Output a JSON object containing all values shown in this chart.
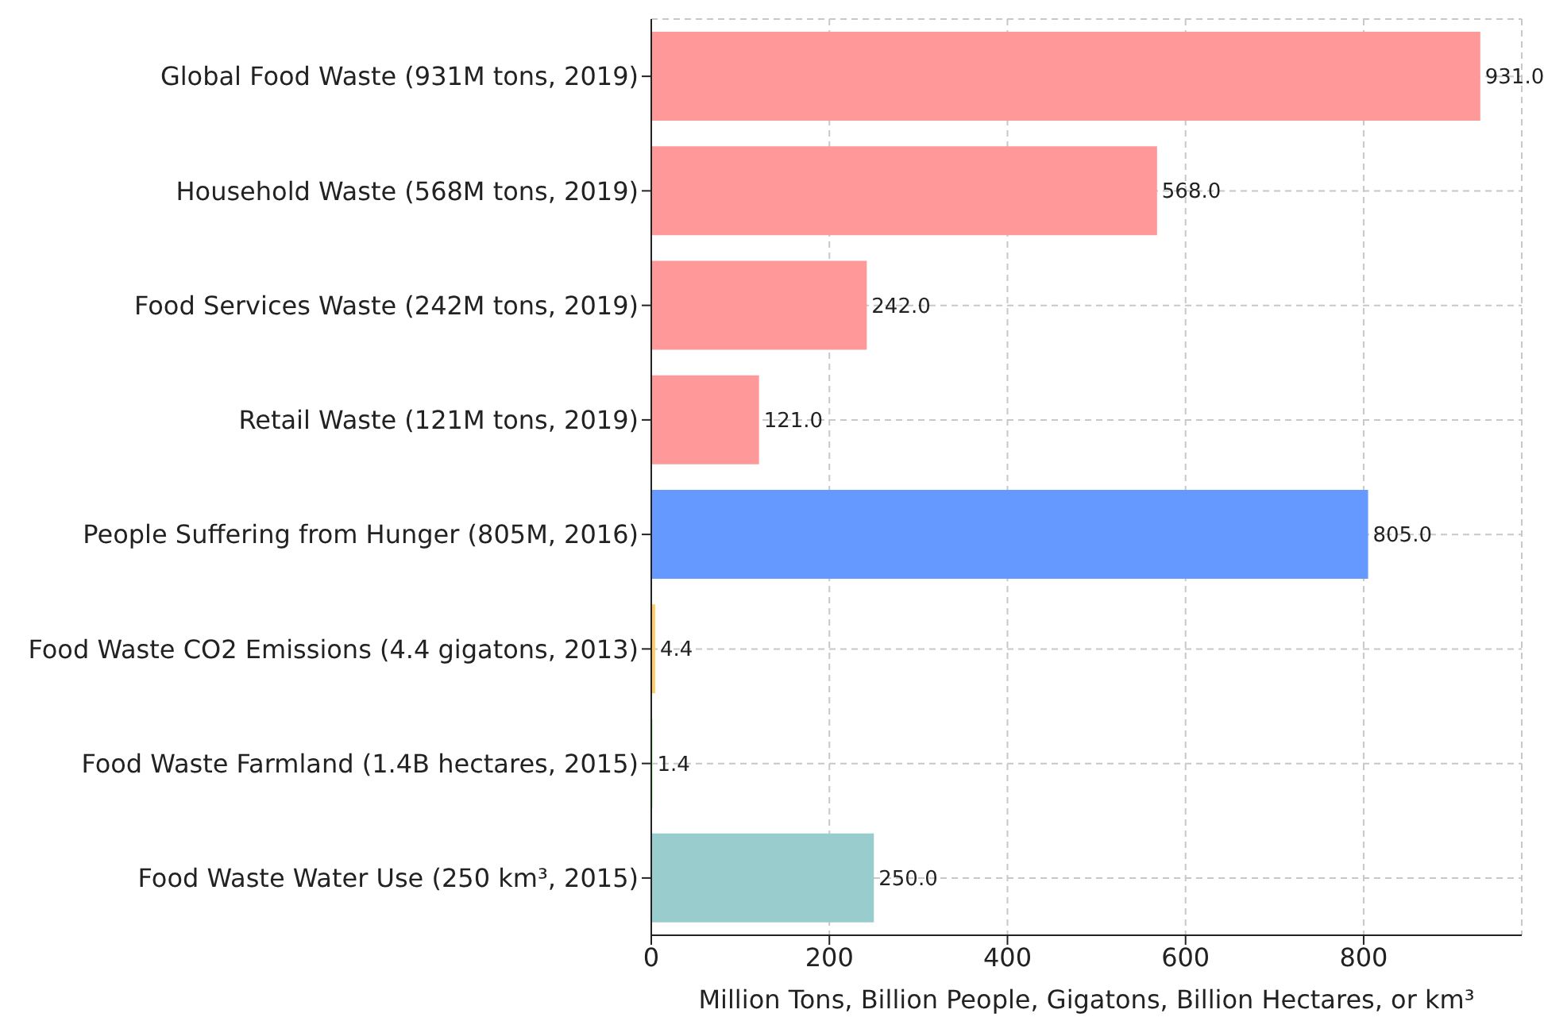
{
  "chart_data": {
    "type": "bar",
    "orientation": "horizontal",
    "categories": [
      "Global Food Waste (931M tons, 2019)",
      "Household Waste (568M tons, 2019)",
      "Food Services Waste (242M tons, 2019)",
      "Retail Waste (121M tons, 2019)",
      "People Suffering from Hunger (805M, 2016)",
      "Food Waste CO2 Emissions (4.4 gigatons, 2013)",
      "Food Waste Farmland (1.4B hectares, 2015)",
      "Food Waste Water Use (250 km³, 2015)"
    ],
    "values": [
      931,
      568,
      242,
      121,
      805,
      4.4,
      1.4,
      250
    ],
    "colors": [
      "#ff9999",
      "#ff9999",
      "#ff9999",
      "#ff9999",
      "#6699ff",
      "#ffcc66",
      "#99ff99",
      "#99cccc"
    ],
    "value_labels": [
      "931.0",
      "568.0",
      "242.0",
      "121.0",
      "805.0",
      "4.4",
      "1.4",
      "250.0"
    ],
    "xlabel": "Million Tons, Billion People, Gigatons, Billion Hectares, or km³",
    "xlim": [
      0,
      977.55
    ],
    "xticks": [
      0,
      200,
      400,
      600,
      800
    ],
    "grid": true
  }
}
